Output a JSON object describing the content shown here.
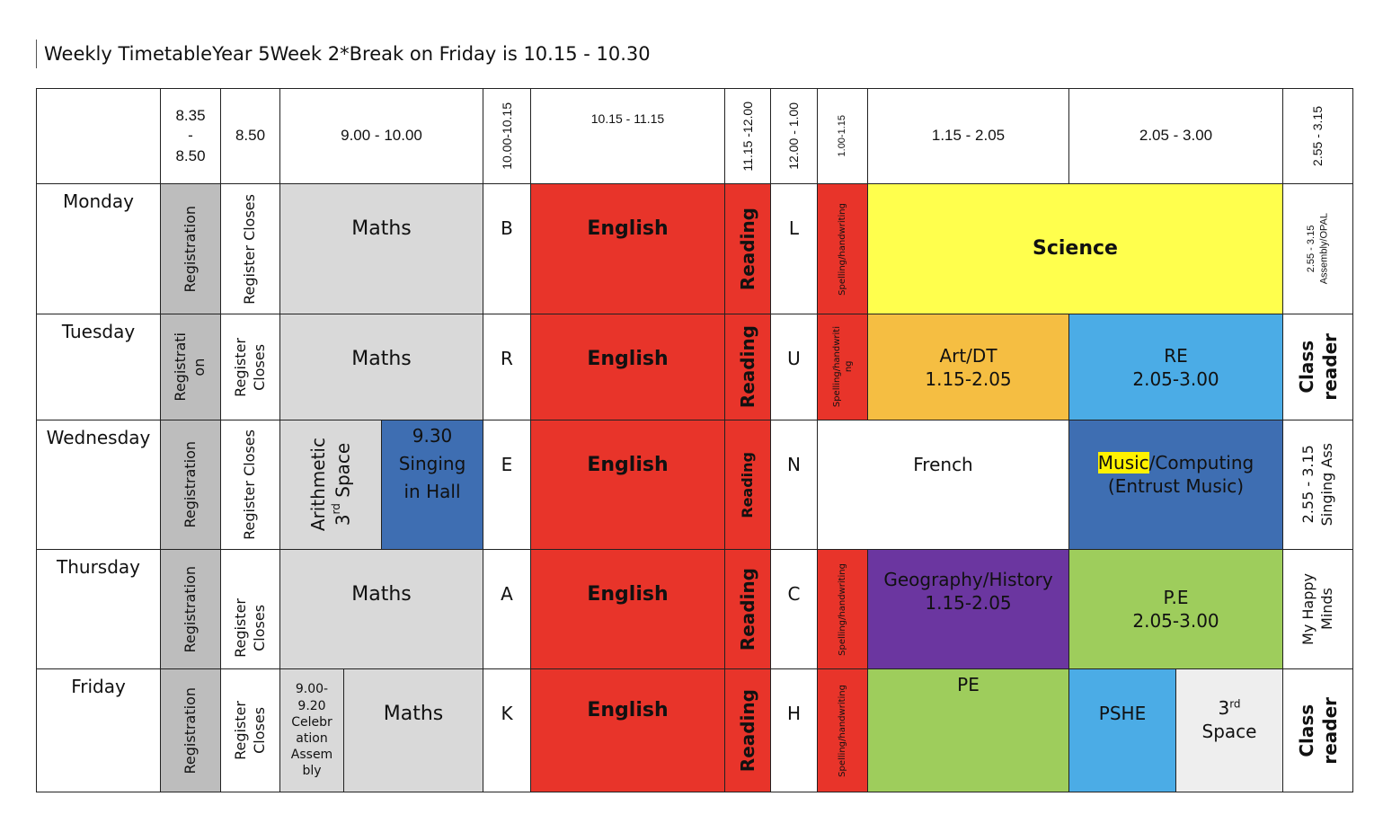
{
  "title": {
    "name": "Weekly Timetable",
    "year": "Year 5",
    "week": "Week 2",
    "note": "*Break on Friday is 10.15 - 10.30"
  },
  "colors": {
    "registration": "#bdbdbd",
    "maths": "#d9d9d9",
    "english": "#e8342a",
    "science": "#ffff4d",
    "art": "#f5be42",
    "re": "#4bace6",
    "music": "#3e6eb2",
    "geography": "#6b36a0",
    "pe": "#9ecd5c",
    "space": "#eeeeee"
  },
  "header": {
    "c1": [
      "8.35",
      "-",
      "8.50"
    ],
    "c2": "8.50",
    "c3": "9.00 - 10.00",
    "c4": "10.00-10.15",
    "c5": "10.15 - 11.15",
    "c6": "11.15 -12.00",
    "c7": "12.00 - 1.00",
    "c8": "1.00-1.15",
    "c9": "1.15 - 2.05",
    "c10": "2.05 - 3.00",
    "c11": "2.55 - 3.15"
  },
  "days": {
    "mon": "Monday",
    "tue": "Tuesday",
    "wed": "Wednesday",
    "thu": "Thursday",
    "fri": "Friday"
  },
  "monday": {
    "registration": "Registration",
    "register_closes": "Register Closes",
    "maths": "Maths",
    "break_letter": "B",
    "english": "English",
    "reading": "Reading",
    "lunch_letter": "L",
    "spelling": "Spelling/handwriting",
    "science": "Science",
    "assembly": [
      "2.55 - 3.15",
      "Assembly/OPAL"
    ]
  },
  "tuesday": {
    "registration": [
      "Registrati",
      "on"
    ],
    "register_closes": [
      "Register",
      "Closes"
    ],
    "maths": "Maths",
    "break_letter": "R",
    "english": "English",
    "reading": "Reading",
    "lunch_letter": "U",
    "spelling": [
      "Spelling/handwriti",
      "ng"
    ],
    "art": [
      "Art/DT",
      "1.15-2.05"
    ],
    "re": [
      "RE",
      "2.05-3.00"
    ],
    "class_reader": [
      "Class",
      "reader"
    ]
  },
  "wednesday": {
    "registration": "Registration",
    "register_closes": "Register Closes",
    "arithmetic": "Arithmetic",
    "space_3rd_base": "3",
    "space_3rd_sup": "rd",
    "space_3rd_rest": " Space",
    "singing": [
      "9.30",
      "Singing",
      "in Hall"
    ],
    "break_letter": "E",
    "english": "English",
    "reading": "Reading",
    "lunch_letter": "N",
    "french": "French",
    "music_word": "Music",
    "computing_rest": "/Computing",
    "entrust": "(Entrust Music)",
    "singing_ass": [
      "2.55 - 3.15",
      "Singing Ass"
    ]
  },
  "thursday": {
    "registration": "Registration",
    "register_closes": [
      "Register",
      "Closes"
    ],
    "maths": "Maths",
    "break_letter": "A",
    "english": "English",
    "reading": "Reading",
    "lunch_letter": "C",
    "spelling": "Spelling/handwriting",
    "geography": [
      "Geography/History",
      "1.15-2.05"
    ],
    "pe": [
      "P.E",
      "2.05-3.00"
    ],
    "happy_minds": [
      "My Happy",
      "Minds"
    ]
  },
  "friday": {
    "registration": "Registration",
    "register_closes": [
      "Register",
      "Closes"
    ],
    "celebration": [
      "9.00-",
      "9.20",
      "Celebr",
      "ation",
      "Assem",
      "bly"
    ],
    "maths": "Maths",
    "break_letter": "K",
    "english": "English",
    "reading": "Reading",
    "lunch_letter": "H",
    "spelling": "Spelling/handwriting",
    "pe": "PE",
    "pshe": "PSHE",
    "space_num": "3",
    "space_sup": "rd",
    "space_word": "Space",
    "class_reader": [
      "Class",
      "reader"
    ]
  }
}
